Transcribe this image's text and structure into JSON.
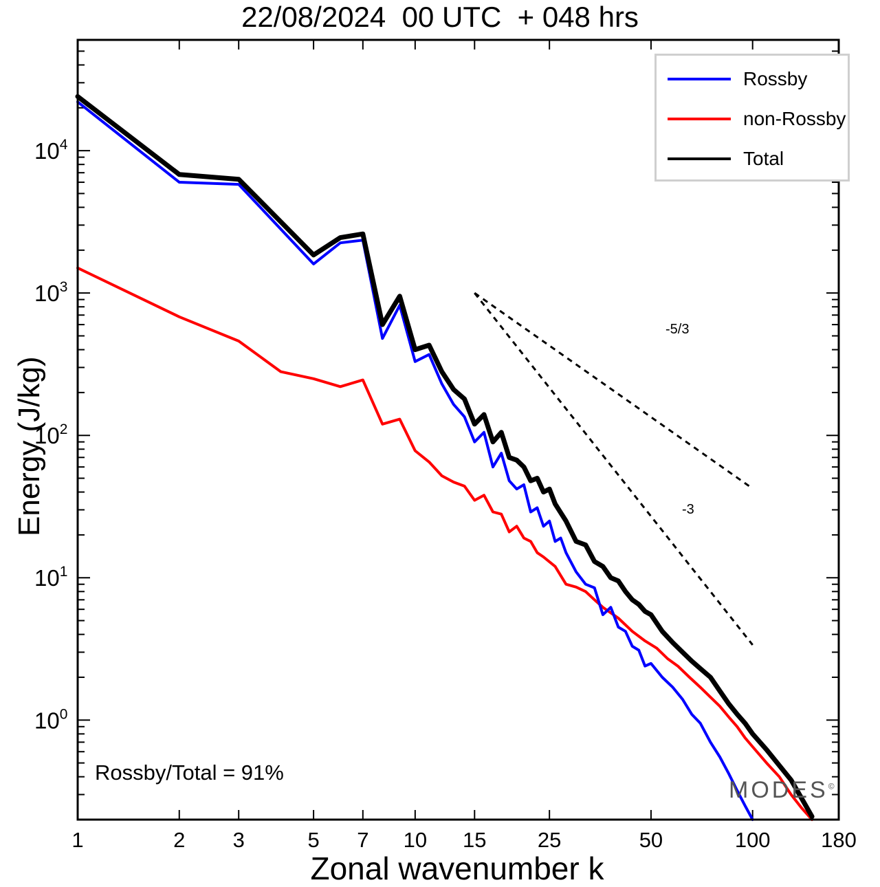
{
  "title": "22/08/2024  00 UTC  + 048 hrs",
  "chart_data": {
    "type": "line",
    "xlabel": "Zonal wavenumber k",
    "ylabel": "Energy (J/kg)",
    "x_scale": "log",
    "y_scale": "log",
    "xlim": [
      1,
      180
    ],
    "ylim": [
      0.2,
      60000
    ],
    "x_ticks": [
      1,
      2,
      3,
      5,
      7,
      10,
      15,
      25,
      50,
      100,
      180
    ],
    "y_tick_exponents": [
      0,
      1,
      2,
      3,
      4
    ],
    "y_tick_base": "10",
    "legend_position": "top-right",
    "series": [
      {
        "name": "Rossby",
        "color": "#0000ff",
        "points": [
          [
            1,
            22000
          ],
          [
            2,
            6000
          ],
          [
            3,
            5800
          ],
          [
            5,
            1600
          ],
          [
            6,
            2250
          ],
          [
            7,
            2350
          ],
          [
            8,
            480
          ],
          [
            9,
            820
          ],
          [
            10,
            330
          ],
          [
            11,
            370
          ],
          [
            12,
            230
          ],
          [
            13,
            165
          ],
          [
            14,
            135
          ],
          [
            15,
            90
          ],
          [
            16,
            105
          ],
          [
            17,
            60
          ],
          [
            18,
            75
          ],
          [
            19,
            48
          ],
          [
            20,
            42
          ],
          [
            21,
            45
          ],
          [
            22,
            29
          ],
          [
            23,
            31
          ],
          [
            24,
            23
          ],
          [
            25,
            25
          ],
          [
            26,
            18
          ],
          [
            27,
            19
          ],
          [
            28,
            15
          ],
          [
            30,
            11
          ],
          [
            32,
            9
          ],
          [
            34,
            8.5
          ],
          [
            36,
            5.5
          ],
          [
            38,
            6.2
          ],
          [
            40,
            4.5
          ],
          [
            42,
            4.2
          ],
          [
            44,
            3.3
          ],
          [
            46,
            3.1
          ],
          [
            48,
            2.4
          ],
          [
            50,
            2.5
          ],
          [
            54,
            2.0
          ],
          [
            58,
            1.7
          ],
          [
            62,
            1.4
          ],
          [
            66,
            1.1
          ],
          [
            70,
            0.95
          ],
          [
            75,
            0.7
          ],
          [
            80,
            0.55
          ],
          [
            85,
            0.42
          ],
          [
            90,
            0.32
          ],
          [
            95,
            0.25
          ],
          [
            100,
            0.2
          ]
        ]
      },
      {
        "name": "non-Rossby",
        "color": "#ff0000",
        "points": [
          [
            1,
            1500
          ],
          [
            2,
            680
          ],
          [
            3,
            460
          ],
          [
            4,
            280
          ],
          [
            5,
            250
          ],
          [
            6,
            220
          ],
          [
            7,
            245
          ],
          [
            8,
            120
          ],
          [
            9,
            130
          ],
          [
            10,
            78
          ],
          [
            11,
            65
          ],
          [
            12,
            52
          ],
          [
            13,
            47
          ],
          [
            14,
            44
          ],
          [
            15,
            35
          ],
          [
            16,
            38
          ],
          [
            17,
            29
          ],
          [
            18,
            28
          ],
          [
            19,
            21
          ],
          [
            20,
            23
          ],
          [
            21,
            19
          ],
          [
            22,
            18
          ],
          [
            23,
            15
          ],
          [
            24,
            14
          ],
          [
            26,
            12
          ],
          [
            28,
            9.0
          ],
          [
            30,
            8.6
          ],
          [
            32,
            8.0
          ],
          [
            34,
            7.0
          ],
          [
            36,
            6.2
          ],
          [
            40,
            5.2
          ],
          [
            44,
            4.2
          ],
          [
            48,
            3.6
          ],
          [
            52,
            3.2
          ],
          [
            56,
            2.7
          ],
          [
            60,
            2.4
          ],
          [
            65,
            2.0
          ],
          [
            70,
            1.7
          ],
          [
            75,
            1.45
          ],
          [
            80,
            1.25
          ],
          [
            85,
            1.05
          ],
          [
            90,
            0.9
          ],
          [
            95,
            0.75
          ],
          [
            100,
            0.65
          ],
          [
            110,
            0.5
          ],
          [
            120,
            0.4
          ],
          [
            130,
            0.3
          ],
          [
            140,
            0.24
          ],
          [
            150,
            0.2
          ]
        ]
      },
      {
        "name": "Total",
        "color": "#000000",
        "points": [
          [
            1,
            24000
          ],
          [
            2,
            6800
          ],
          [
            3,
            6300
          ],
          [
            5,
            1850
          ],
          [
            6,
            2450
          ],
          [
            7,
            2600
          ],
          [
            8,
            600
          ],
          [
            9,
            950
          ],
          [
            10,
            400
          ],
          [
            11,
            430
          ],
          [
            12,
            280
          ],
          [
            13,
            210
          ],
          [
            14,
            180
          ],
          [
            15,
            120
          ],
          [
            16,
            140
          ],
          [
            17,
            90
          ],
          [
            18,
            105
          ],
          [
            19,
            70
          ],
          [
            20,
            67
          ],
          [
            21,
            60
          ],
          [
            22,
            48
          ],
          [
            23,
            50
          ],
          [
            24,
            40
          ],
          [
            25,
            42
          ],
          [
            26,
            33
          ],
          [
            28,
            25
          ],
          [
            30,
            18
          ],
          [
            32,
            17
          ],
          [
            34,
            13
          ],
          [
            36,
            12
          ],
          [
            38,
            10
          ],
          [
            40,
            9.5
          ],
          [
            42,
            8.0
          ],
          [
            44,
            7.0
          ],
          [
            46,
            6.5
          ],
          [
            48,
            5.8
          ],
          [
            50,
            5.5
          ],
          [
            54,
            4.2
          ],
          [
            58,
            3.5
          ],
          [
            62,
            3.0
          ],
          [
            66,
            2.6
          ],
          [
            70,
            2.3
          ],
          [
            75,
            2.0
          ],
          [
            80,
            1.6
          ],
          [
            85,
            1.3
          ],
          [
            90,
            1.1
          ],
          [
            95,
            0.95
          ],
          [
            100,
            0.8
          ],
          [
            110,
            0.62
          ],
          [
            120,
            0.48
          ],
          [
            130,
            0.38
          ],
          [
            140,
            0.28
          ],
          [
            150,
            0.21
          ]
        ]
      }
    ],
    "reference_slopes": [
      {
        "label": "-5/3",
        "exponent": -1.6667,
        "x0": 15,
        "y0": 1000,
        "x1": 100
      },
      {
        "label": "-3",
        "exponent": -3,
        "x0": 15,
        "y0": 1000,
        "x1": 100
      }
    ],
    "annotations": {
      "ratio_text": "Rossby/Total = 91%",
      "watermark": "MODES",
      "watermark_symbol": "©"
    }
  }
}
